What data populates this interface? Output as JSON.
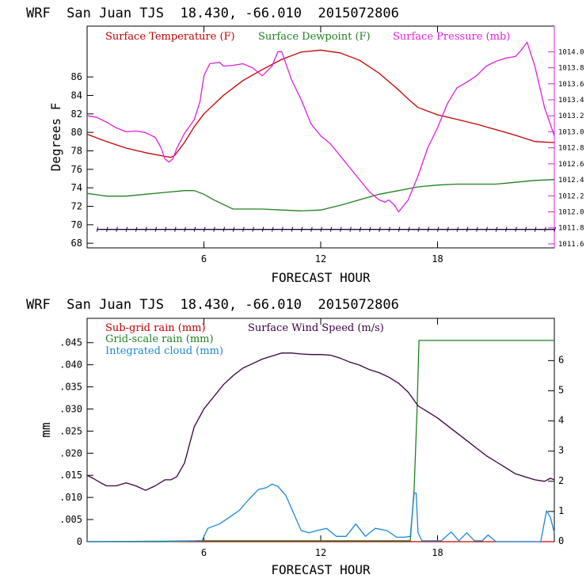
{
  "chart_data": [
    {
      "type": "line",
      "title": "WRF  San Juan TJS  18.430, -66.010  2015072806",
      "xlabel": "FORECAST HOUR",
      "ylabel": "Degrees F",
      "xlim": [
        0,
        24
      ],
      "x_ticks": [
        "6",
        "12",
        "18"
      ],
      "ylim_left": [
        67.5,
        91.5
      ],
      "y_ticks_left": [
        "68",
        "70",
        "72",
        "74",
        "76",
        "78",
        "80",
        "82",
        "84",
        "86"
      ],
      "ylim_right": [
        1011.55,
        1014.32
      ],
      "y_ticks_right": [
        "1011.6",
        "1011.8",
        "1012.0",
        "1012.2",
        "1012.4",
        "1012.6",
        "1012.8",
        "1013.0",
        "1013.2",
        "1013.4",
        "1013.6",
        "1013.8",
        "1014.0"
      ],
      "series": [
        {
          "name": "Surface Temperature (F)",
          "axis": "left",
          "color": "#c00000",
          "x": [
            0,
            1,
            2,
            3,
            4,
            4.3,
            4.5,
            5,
            5.5,
            6,
            7,
            8,
            9,
            10,
            11,
            12,
            13,
            14,
            15,
            16,
            16.5,
            17,
            18,
            19,
            20,
            21,
            22,
            23,
            24
          ],
          "y": [
            79.8,
            79.0,
            78.3,
            77.8,
            77.4,
            77.3,
            77.5,
            78.9,
            80.6,
            82.0,
            84.0,
            85.6,
            86.8,
            87.9,
            88.7,
            88.9,
            88.6,
            87.8,
            86.4,
            84.6,
            83.6,
            82.7,
            81.9,
            81.4,
            80.9,
            80.3,
            79.7,
            79.0,
            78.9
          ]
        },
        {
          "name": "Surface Dewpoint (F)",
          "axis": "left",
          "color": "#208020",
          "x": [
            0,
            1,
            2,
            3,
            4,
            5,
            5.5,
            6,
            6.5,
            7,
            7.5,
            8,
            9,
            10,
            11,
            12,
            13,
            14,
            15,
            16,
            17,
            18,
            19,
            20,
            21,
            22,
            23,
            24
          ],
          "y": [
            73.4,
            73.1,
            73.1,
            73.3,
            73.5,
            73.7,
            73.7,
            73.3,
            72.7,
            72.2,
            71.7,
            71.7,
            71.7,
            71.6,
            71.5,
            71.6,
            72.1,
            72.7,
            73.3,
            73.7,
            74.1,
            74.3,
            74.4,
            74.4,
            74.4,
            74.6,
            74.8,
            74.9
          ]
        },
        {
          "name": "Surface Pressure (mb)",
          "axis": "right",
          "color": "#e020e0",
          "x": [
            0,
            0.5,
            1,
            1.5,
            2,
            2.5,
            3,
            3.5,
            3.8,
            4,
            4.2,
            4.4,
            4.6,
            5,
            5.5,
            5.8,
            6,
            6.3,
            6.8,
            7,
            7.5,
            8,
            8.5,
            9,
            9.5,
            9.8,
            10,
            10.5,
            11,
            11.5,
            12,
            12.5,
            13,
            13.5,
            14,
            14.5,
            15,
            15.3,
            15.5,
            15.8,
            16,
            16.5,
            17,
            17.5,
            18,
            18.5,
            19,
            19.5,
            20,
            20.5,
            21,
            21.5,
            22,
            22.3,
            22.6,
            23,
            23.5,
            24
          ],
          "y": [
            1013.2,
            1013.18,
            1013.12,
            1013.05,
            1013.0,
            1013.01,
            1012.99,
            1012.93,
            1012.8,
            1012.66,
            1012.62,
            1012.66,
            1012.79,
            1012.98,
            1013.15,
            1013.38,
            1013.7,
            1013.85,
            1013.87,
            1013.82,
            1013.83,
            1013.85,
            1013.8,
            1013.7,
            1013.82,
            1014.0,
            1014.0,
            1013.65,
            1013.4,
            1013.1,
            1012.95,
            1012.85,
            1012.7,
            1012.55,
            1012.4,
            1012.25,
            1012.15,
            1012.12,
            1012.15,
            1012.08,
            1012.0,
            1012.15,
            1012.45,
            1012.8,
            1013.05,
            1013.35,
            1013.55,
            1013.62,
            1013.7,
            1013.82,
            1013.88,
            1013.92,
            1013.94,
            1014.02,
            1014.12,
            1013.82,
            1013.3,
            1012.95
          ]
        }
      ],
      "wind_barbs": {
        "color": "#200040",
        "y": 69.5,
        "x_from": 0.5,
        "x_to": 24,
        "step": 0.5
      }
    },
    {
      "type": "line",
      "title": "WRF  San Juan TJS  18.430, -66.010  2015072806",
      "xlabel": "FORECAST HOUR",
      "ylabel": "mm",
      "xlim": [
        0,
        24
      ],
      "x_ticks": [
        "6",
        "12",
        "18"
      ],
      "ylim_left": [
        0,
        0.0505
      ],
      "y_ticks_left": [
        "0",
        ".005",
        ".010",
        ".015",
        ".020",
        ".025",
        ".030",
        ".035",
        ".040",
        ".045"
      ],
      "ylim_right": [
        0,
        7.4
      ],
      "y_ticks_right": [
        "0",
        "1",
        "2",
        "3",
        "4",
        "5",
        "6"
      ],
      "series": [
        {
          "name": "Sub-grid rain (mm)",
          "axis": "left",
          "color": "#c00000",
          "x": [
            0,
            24
          ],
          "y": [
            0,
            0
          ]
        },
        {
          "name": "Grid-scale rain (mm)",
          "axis": "left",
          "color": "#208020",
          "x": [
            0,
            4,
            6,
            12,
            15,
            16.6,
            16.8,
            16.95,
            17.05,
            20,
            24
          ],
          "y": [
            0,
            0.0001,
            0.0002,
            0.0002,
            0.0002,
            0.0002,
            0.012,
            0.03,
            0.0455,
            0.0455,
            0.0455
          ]
        },
        {
          "name": "Integrated cloud (mm)",
          "axis": "left",
          "color": "#1a88d8",
          "x": [
            0,
            4,
            5.9,
            6.2,
            6.8,
            7.3,
            7.8,
            8.3,
            8.8,
            9.2,
            9.5,
            9.8,
            10.2,
            10.6,
            11,
            11.4,
            11.8,
            12.3,
            12.8,
            13.3,
            13.8,
            14.3,
            14.8,
            15.4,
            15.9,
            16.3,
            16.6,
            16.8,
            16.9,
            17.0,
            17.2,
            17.6,
            18.2,
            18.7,
            19.1,
            19.5,
            19.9,
            20.3,
            20.6,
            21,
            23.3,
            23.6,
            23.8,
            24
          ],
          "y": [
            0,
            0,
            0.0002,
            0.003,
            0.004,
            0.0055,
            0.007,
            0.0095,
            0.0118,
            0.0122,
            0.013,
            0.0125,
            0.0105,
            0.0065,
            0.0025,
            0.002,
            0.0025,
            0.003,
            0.0012,
            0.0012,
            0.004,
            0.0012,
            0.003,
            0.0025,
            0.001,
            0.001,
            0.0012,
            0.011,
            0.011,
            0.002,
            0.0002,
            0.0002,
            0.0002,
            0.0022,
            0.0002,
            0.002,
            0.0002,
            0.0002,
            0.0015,
            0,
            0,
            0.007,
            0.0055,
            0.002
          ]
        },
        {
          "name": "Surface Wind Speed (m/s)",
          "axis": "right",
          "color": "#3a0040",
          "x": [
            0,
            0.3,
            0.7,
            1,
            1.5,
            2,
            2.5,
            3,
            3.5,
            4,
            4.3,
            4.6,
            5,
            5.5,
            6,
            6.5,
            7,
            7.5,
            8,
            8.5,
            9,
            9.5,
            10,
            10.5,
            11,
            11.5,
            12,
            12.5,
            13,
            13.5,
            14,
            14.5,
            15,
            15.5,
            16,
            16.5,
            17,
            17.5,
            18,
            18.5,
            19,
            19.5,
            20,
            20.5,
            21,
            21.5,
            22,
            22.5,
            23,
            23.5,
            23.8,
            24
          ],
          "y": [
            2.2,
            2.1,
            1.95,
            1.85,
            1.85,
            1.95,
            1.85,
            1.7,
            1.85,
            2.05,
            2.05,
            2.15,
            2.6,
            3.8,
            4.4,
            4.8,
            5.2,
            5.5,
            5.75,
            5.9,
            6.05,
            6.15,
            6.25,
            6.25,
            6.22,
            6.2,
            6.2,
            6.18,
            6.08,
            5.95,
            5.85,
            5.7,
            5.6,
            5.45,
            5.25,
            4.95,
            4.5,
            4.3,
            4.1,
            3.85,
            3.6,
            3.35,
            3.1,
            2.85,
            2.65,
            2.45,
            2.25,
            2.15,
            2.05,
            2.0,
            2.1,
            2.05
          ]
        }
      ]
    }
  ]
}
